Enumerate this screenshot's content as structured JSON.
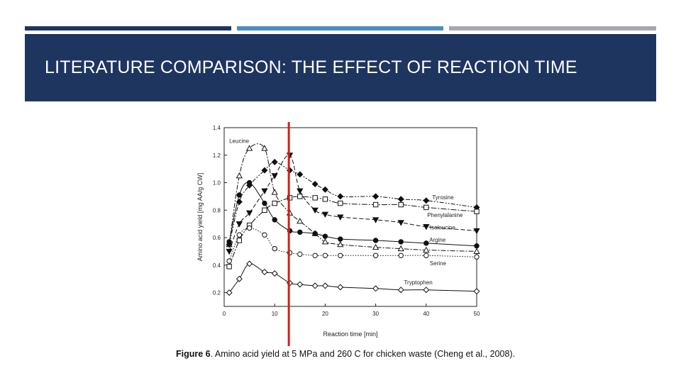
{
  "slide": {
    "title": "LITERATURE COMPARISON: THE EFFECT OF REACTION TIME",
    "accent_colors": [
      "#1e3560",
      "#4a8fbd",
      "#a7a9ac"
    ],
    "caption_label": "Figure 6",
    "caption_text": ". Amino acid yield at 5 MPa and 260 C for chicken waste (Cheng et al., 2008)."
  },
  "chart_data": {
    "type": "line",
    "xlabel": "Reaction time [min]",
    "ylabel": "Amino acid yield [mg AA/g CW]",
    "xlim": [
      0,
      50
    ],
    "ylim": [
      0.1,
      1.4
    ],
    "xticks": [
      0,
      10,
      20,
      30,
      40,
      50
    ],
    "yticks": [
      0.2,
      0.4,
      0.6,
      0.8,
      1.0,
      1.2,
      1.4
    ],
    "grid": false,
    "marker_line": {
      "x": 12.8,
      "color": "#d0201a"
    },
    "series": [
      {
        "name": "Leucine",
        "marker": "triangle-open",
        "dash": "7,2,2,2",
        "x": [
          1,
          3,
          5,
          8,
          10,
          13,
          15,
          18,
          20,
          23,
          30,
          35,
          40,
          50
        ],
        "y": [
          0.55,
          1.05,
          1.25,
          1.25,
          0.93,
          0.78,
          0.72,
          0.63,
          0.57,
          0.55,
          0.53,
          0.52,
          0.51,
          0.5
        ]
      },
      {
        "name": "Tyrosine",
        "marker": "diamond-filled",
        "dash": "6,2,2,2,2,2",
        "x": [
          1,
          3,
          5,
          8,
          10,
          13,
          15,
          18,
          20,
          23,
          30,
          35,
          40,
          50
        ],
        "y": [
          0.55,
          0.86,
          0.98,
          1.09,
          1.15,
          1.09,
          1.06,
          0.99,
          0.95,
          0.9,
          0.9,
          0.88,
          0.87,
          0.82
        ]
      },
      {
        "name": "Phenylalanine",
        "marker": "square-open",
        "dash": "8,2,2,2",
        "x": [
          1,
          3,
          5,
          8,
          10,
          13,
          15,
          18,
          20,
          23,
          30,
          35,
          40,
          50
        ],
        "y": [
          0.39,
          0.58,
          0.69,
          0.8,
          0.85,
          0.89,
          0.9,
          0.89,
          0.88,
          0.85,
          0.84,
          0.84,
          0.82,
          0.79
        ]
      },
      {
        "name": "Isoleucine",
        "marker": "triangle-down-filled",
        "dash": "6,3",
        "x": [
          1,
          3,
          5,
          8,
          10,
          13,
          15,
          18,
          20,
          23,
          30,
          35,
          40,
          50
        ],
        "y": [
          0.5,
          0.7,
          0.78,
          0.94,
          1.05,
          1.2,
          0.94,
          0.8,
          0.77,
          0.75,
          0.73,
          0.71,
          0.68,
          0.65
        ]
      },
      {
        "name": "Argine",
        "marker": "circle-filled",
        "dash": "",
        "x": [
          1,
          3,
          5,
          8,
          10,
          13,
          15,
          18,
          20,
          23,
          30,
          35,
          40,
          50
        ],
        "y": [
          0.57,
          0.91,
          1.0,
          0.85,
          0.73,
          0.65,
          0.64,
          0.63,
          0.61,
          0.59,
          0.58,
          0.57,
          0.56,
          0.54
        ]
      },
      {
        "name": "Serine",
        "marker": "circle-open",
        "dash": "1.5,2",
        "x": [
          1,
          3,
          5,
          8,
          10,
          13,
          15,
          18,
          20,
          23,
          30,
          35,
          40,
          50
        ],
        "y": [
          0.43,
          0.62,
          0.67,
          0.62,
          0.52,
          0.49,
          0.48,
          0.47,
          0.47,
          0.47,
          0.47,
          0.47,
          0.47,
          0.46
        ]
      },
      {
        "name": "Tryptophan",
        "marker": "diamond-open",
        "dash": "",
        "x": [
          1,
          3,
          5,
          8,
          10,
          13,
          15,
          18,
          20,
          23,
          30,
          35,
          40,
          50
        ],
        "y": [
          0.2,
          0.3,
          0.41,
          0.35,
          0.34,
          0.27,
          0.26,
          0.25,
          0.25,
          0.24,
          0.23,
          0.22,
          0.22,
          0.21
        ]
      }
    ],
    "labels": [
      {
        "text": "Leucine",
        "x": 1.0,
        "y": 1.29
      },
      {
        "text": "Tyrosine",
        "x": 41.2,
        "y": 0.88
      },
      {
        "text": "Phenylalanine",
        "x": 40.2,
        "y": 0.75
      },
      {
        "text": "Isoleucine",
        "x": 40.7,
        "y": 0.66
      },
      {
        "text": "Argine",
        "x": 40.6,
        "y": 0.57
      },
      {
        "text": "Serine",
        "x": 40.7,
        "y": 0.4
      },
      {
        "text": "Tryptophen",
        "x": 35.6,
        "y": 0.26
      }
    ]
  }
}
